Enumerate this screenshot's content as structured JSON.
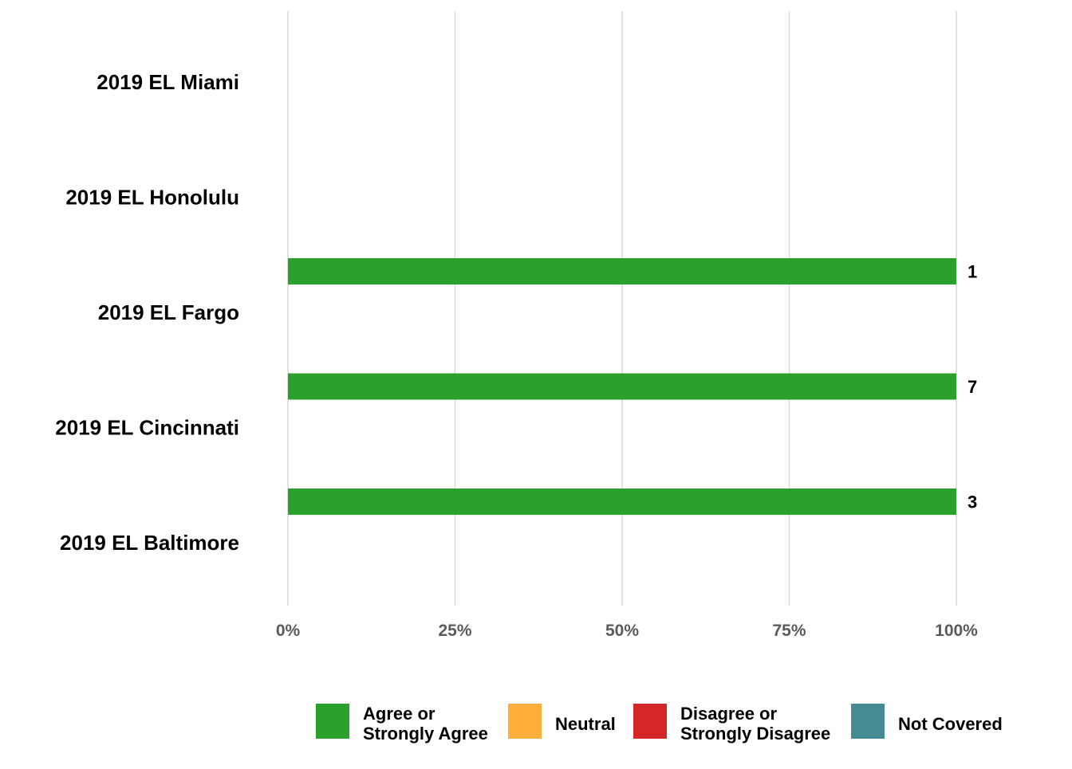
{
  "chart_data": {
    "type": "bar",
    "orientation": "horizontal",
    "stacked": true,
    "categories": [
      "2019 EL Miami",
      "2019 EL Honolulu",
      "2019 EL Fargo",
      "2019 EL Cincinnati",
      "2019 EL Baltimore"
    ],
    "series": [
      {
        "name": "Agree or\nStrongly Agree",
        "color": "#2ca02c",
        "values": [
          null,
          null,
          100,
          100,
          100
        ],
        "data_labels": [
          "",
          "",
          "1",
          "7",
          "3"
        ]
      },
      {
        "name": "Neutral",
        "color": "#ffae3b",
        "values": [
          null,
          null,
          0,
          0,
          0
        ]
      },
      {
        "name": "Disagree or\nStrongly Disagree",
        "color": "#d62728",
        "values": [
          null,
          null,
          0,
          0,
          0
        ]
      },
      {
        "name": "Not Covered",
        "color": "#468a92",
        "values": [
          null,
          null,
          0,
          0,
          0
        ]
      }
    ],
    "xlim": [
      0,
      100
    ],
    "xticks": [
      "0%",
      "25%",
      "50%",
      "75%",
      "100%"
    ],
    "grid": true,
    "legend_position": "bottom",
    "title": "",
    "xlabel": "",
    "ylabel": ""
  }
}
